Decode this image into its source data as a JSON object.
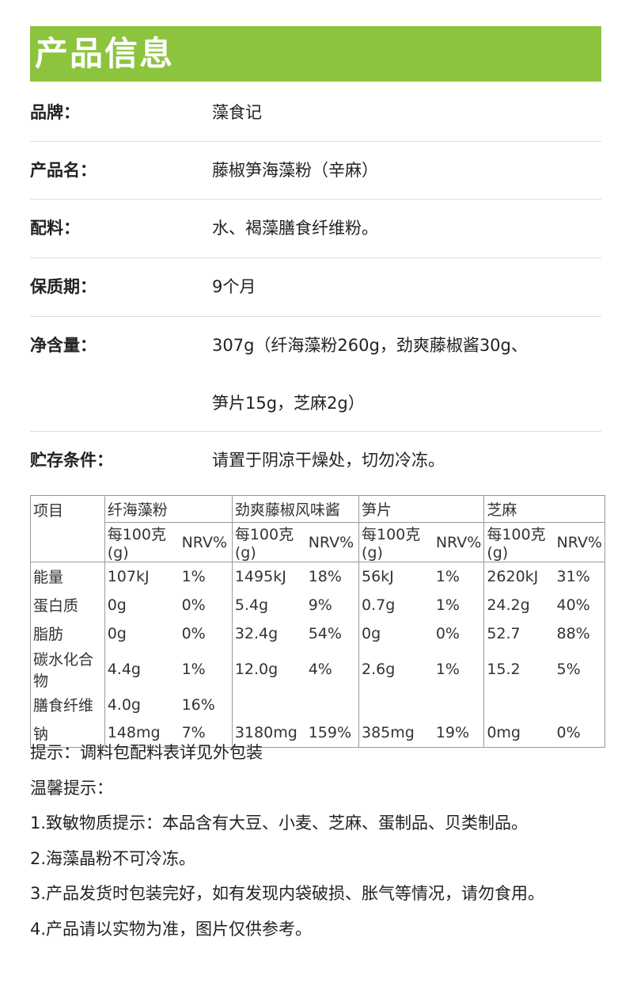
{
  "header": {
    "title": "产品信息"
  },
  "info": [
    {
      "label": "品牌：",
      "value": "藻食记"
    },
    {
      "label": "产品名：",
      "value": "藤椒笋海藻粉（辛麻）"
    },
    {
      "label": "配料：",
      "value": "水、褐藻膳食纤维粉。"
    },
    {
      "label": "保质期：",
      "value": "9个月"
    },
    {
      "label": "净含量：",
      "value": "307g（纤海藻粉260g，劲爽藤椒酱30g、",
      "value2": "笋片15g，芝麻2g）"
    },
    {
      "label": "贮存条件：",
      "value": "请置于阴凉干燥处，切勿冷冻。"
    }
  ],
  "table": {
    "item_header": "项目",
    "columns": [
      "纤海藻粉",
      "劲爽藤椒风味酱",
      "笋片",
      "芝麻"
    ],
    "sub_per": "每100克(g)",
    "sub_nrv": "NRV%",
    "rows": [
      {
        "name": "能量",
        "cells": [
          "107kJ",
          "1%",
          "1495kJ",
          "18%",
          "56kJ",
          "1%",
          "2620kJ",
          "31%"
        ]
      },
      {
        "name": "蛋白质",
        "cells": [
          "0g",
          "0%",
          "5.4g",
          "9%",
          "0.7g",
          "1%",
          "24.2g",
          "40%"
        ]
      },
      {
        "name": "脂肪",
        "cells": [
          "0g",
          "0%",
          "32.4g",
          "54%",
          "0g",
          "0%",
          "52.7",
          "88%"
        ]
      },
      {
        "name": "碳水化合物",
        "cells": [
          "4.4g",
          "1%",
          "12.0g",
          "4%",
          "2.6g",
          "1%",
          "15.2",
          "5%"
        ]
      },
      {
        "name": "膳食纤维",
        "cells": [
          "4.0g",
          "16%",
          "",
          "",
          "",
          "",
          "",
          ""
        ]
      },
      {
        "name": "钠",
        "cells": [
          "148mg",
          "7%",
          "3180mg",
          "159%",
          "385mg",
          "19%",
          "0mg",
          "0%"
        ]
      }
    ]
  },
  "notes": [
    "提示：调料包配料表详见外包装",
    "温馨提示：",
    "1.致敏物质提示：本品含有大豆、小麦、芝麻、蛋制品、贝类制品。",
    "2.海藻晶粉不可冷冻。",
    "3.产品发货时包装完好，如有发现内袋破损、胀气等情况，请勿食用。",
    "4.产品请以实物为准，图片仅供参考。"
  ],
  "colors": {
    "header_bg": "#8cc43e"
  }
}
